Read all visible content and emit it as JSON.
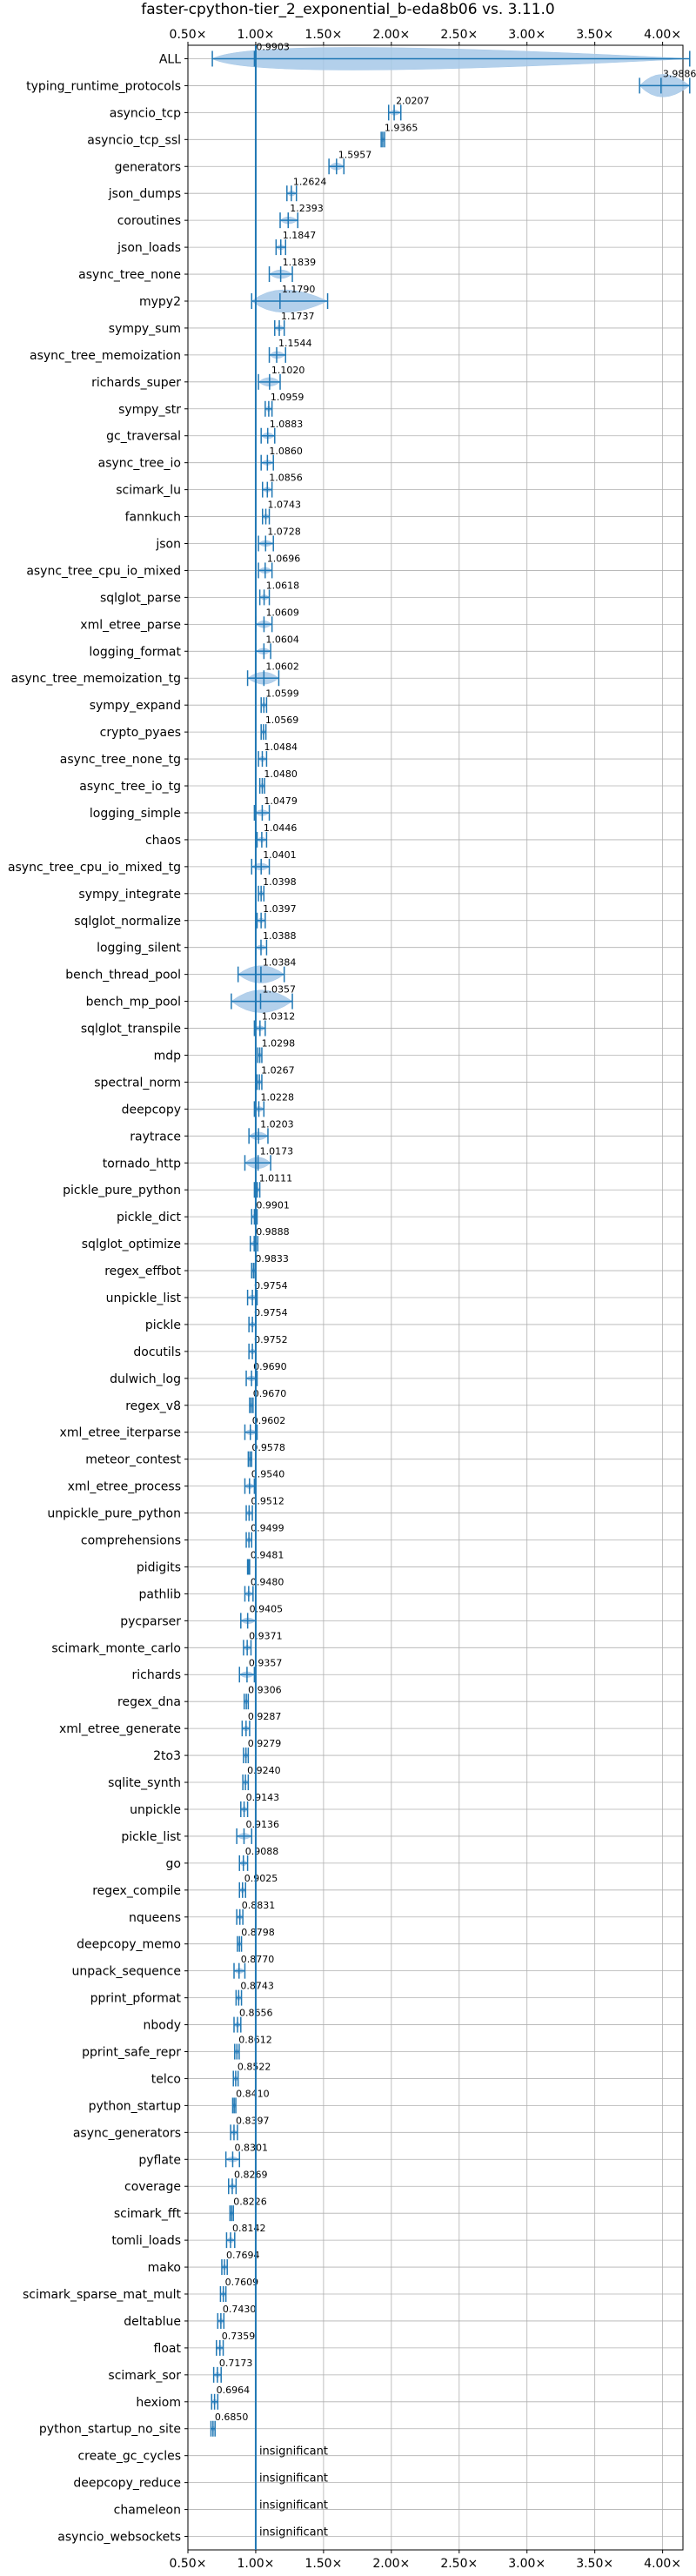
{
  "chart_data": {
    "type": "violin",
    "title": "faster-cpython-tier_2_exponential_b-eda8b06 vs. 3.11.0",
    "xlabel": "",
    "ylabel": "",
    "xlim": [
      0.5,
      4.15
    ],
    "x_ticks": [
      0.5,
      1.0,
      1.5,
      2.0,
      2.5,
      3.0,
      3.5,
      4.0
    ],
    "x_tick_labels": [
      "0.50×",
      "1.00×",
      "1.50×",
      "2.00×",
      "2.50×",
      "3.00×",
      "3.50×",
      "4.00×"
    ],
    "reference_line": 1.0,
    "grid": true,
    "benchmarks": [
      {
        "name": "ALL",
        "value": 0.9903,
        "label": "0.9903",
        "lo": 0.68,
        "hi": 4.2,
        "spread": 0.15
      },
      {
        "name": "typing_runtime_protocols",
        "value": 3.9886,
        "label": "3.9886",
        "lo": 3.83,
        "hi": 4.2,
        "spread": 0.13
      },
      {
        "name": "asyncio_tcp",
        "value": 2.0207,
        "label": "2.0207",
        "lo": 1.98,
        "hi": 2.07,
        "spread": 0.03
      },
      {
        "name": "asyncio_tcp_ssl",
        "value": 1.9365,
        "label": "1.9365",
        "lo": 1.925,
        "hi": 1.95,
        "spread": 0.008
      },
      {
        "name": "generators",
        "value": 1.5957,
        "label": "1.5957",
        "lo": 1.54,
        "hi": 1.65,
        "spread": 0.04
      },
      {
        "name": "json_dumps",
        "value": 1.2624,
        "label": "1.2624",
        "lo": 1.23,
        "hi": 1.3,
        "spread": 0.025
      },
      {
        "name": "coroutines",
        "value": 1.2393,
        "label": "1.2393",
        "lo": 1.18,
        "hi": 1.31,
        "spread": 0.04
      },
      {
        "name": "json_loads",
        "value": 1.1847,
        "label": "1.1847",
        "lo": 1.15,
        "hi": 1.22,
        "spread": 0.025
      },
      {
        "name": "async_tree_none",
        "value": 1.1839,
        "label": "1.1839",
        "lo": 1.1,
        "hi": 1.27,
        "spread": 0.05
      },
      {
        "name": "mypy2",
        "value": 1.179,
        "label": "1.1790",
        "lo": 0.97,
        "hi": 1.53,
        "spread": 0.14
      },
      {
        "name": "sympy_sum",
        "value": 1.1737,
        "label": "1.1737",
        "lo": 1.14,
        "hi": 1.21,
        "spread": 0.025
      },
      {
        "name": "async_tree_memoization",
        "value": 1.1544,
        "label": "1.1544",
        "lo": 1.1,
        "hi": 1.22,
        "spread": 0.04
      },
      {
        "name": "richards_super",
        "value": 1.102,
        "label": "1.1020",
        "lo": 1.02,
        "hi": 1.18,
        "spread": 0.05
      },
      {
        "name": "sympy_str",
        "value": 1.0959,
        "label": "1.0959",
        "lo": 1.07,
        "hi": 1.12,
        "spread": 0.02
      },
      {
        "name": "gc_traversal",
        "value": 1.0883,
        "label": "1.0883",
        "lo": 1.04,
        "hi": 1.14,
        "spread": 0.035
      },
      {
        "name": "async_tree_io",
        "value": 1.086,
        "label": "1.0860",
        "lo": 1.04,
        "hi": 1.13,
        "spread": 0.03
      },
      {
        "name": "scimark_lu",
        "value": 1.0856,
        "label": "1.0856",
        "lo": 1.05,
        "hi": 1.12,
        "spread": 0.025
      },
      {
        "name": "fannkuch",
        "value": 1.0743,
        "label": "1.0743",
        "lo": 1.05,
        "hi": 1.1,
        "spread": 0.02
      },
      {
        "name": "json",
        "value": 1.0728,
        "label": "1.0728",
        "lo": 1.02,
        "hi": 1.13,
        "spread": 0.035
      },
      {
        "name": "async_tree_cpu_io_mixed",
        "value": 1.0696,
        "label": "1.0696",
        "lo": 1.02,
        "hi": 1.12,
        "spread": 0.035
      },
      {
        "name": "sqlglot_parse",
        "value": 1.0618,
        "label": "1.0618",
        "lo": 1.03,
        "hi": 1.1,
        "spread": 0.025
      },
      {
        "name": "xml_etree_parse",
        "value": 1.0609,
        "label": "1.0609",
        "lo": 1.0,
        "hi": 1.12,
        "spread": 0.04
      },
      {
        "name": "logging_format",
        "value": 1.0604,
        "label": "1.0604",
        "lo": 1.0,
        "hi": 1.11,
        "spread": 0.035
      },
      {
        "name": "async_tree_memoization_tg",
        "value": 1.0602,
        "label": "1.0602",
        "lo": 0.94,
        "hi": 1.17,
        "spread": 0.07
      },
      {
        "name": "sympy_expand",
        "value": 1.0599,
        "label": "1.0599",
        "lo": 1.04,
        "hi": 1.08,
        "spread": 0.015
      },
      {
        "name": "crypto_pyaes",
        "value": 1.0569,
        "label": "1.0569",
        "lo": 1.04,
        "hi": 1.075,
        "spread": 0.012
      },
      {
        "name": "async_tree_none_tg",
        "value": 1.0484,
        "label": "1.0484",
        "lo": 1.02,
        "hi": 1.08,
        "spread": 0.02
      },
      {
        "name": "async_tree_io_tg",
        "value": 1.048,
        "label": "1.0480",
        "lo": 1.03,
        "hi": 1.065,
        "spread": 0.012
      },
      {
        "name": "logging_simple",
        "value": 1.0479,
        "label": "1.0479",
        "lo": 0.99,
        "hi": 1.1,
        "spread": 0.035
      },
      {
        "name": "chaos",
        "value": 1.0446,
        "label": "1.0446",
        "lo": 1.01,
        "hi": 1.08,
        "spread": 0.025
      },
      {
        "name": "async_tree_cpu_io_mixed_tg",
        "value": 1.0401,
        "label": "1.0401",
        "lo": 0.97,
        "hi": 1.1,
        "spread": 0.04
      },
      {
        "name": "sympy_integrate",
        "value": 1.0398,
        "label": "1.0398",
        "lo": 1.02,
        "hi": 1.06,
        "spread": 0.015
      },
      {
        "name": "sqlglot_normalize",
        "value": 1.0397,
        "label": "1.0397",
        "lo": 1.01,
        "hi": 1.07,
        "spread": 0.02
      },
      {
        "name": "logging_silent",
        "value": 1.0388,
        "label": "1.0388",
        "lo": 1.0,
        "hi": 1.08,
        "spread": 0.025
      },
      {
        "name": "bench_thread_pool",
        "value": 1.0384,
        "label": "1.0384",
        "lo": 0.87,
        "hi": 1.21,
        "spread": 0.1
      },
      {
        "name": "bench_mp_pool",
        "value": 1.0357,
        "label": "1.0357",
        "lo": 0.82,
        "hi": 1.27,
        "spread": 0.13
      },
      {
        "name": "sqlglot_transpile",
        "value": 1.0312,
        "label": "1.0312",
        "lo": 0.99,
        "hi": 1.07,
        "spread": 0.03
      },
      {
        "name": "mdp",
        "value": 1.0298,
        "label": "1.0298",
        "lo": 1.015,
        "hi": 1.045,
        "spread": 0.01
      },
      {
        "name": "spectral_norm",
        "value": 1.0267,
        "label": "1.0267",
        "lo": 1.01,
        "hi": 1.045,
        "spread": 0.012
      },
      {
        "name": "deepcopy",
        "value": 1.0228,
        "label": "1.0228",
        "lo": 0.99,
        "hi": 1.06,
        "spread": 0.025
      },
      {
        "name": "raytrace",
        "value": 1.0203,
        "label": "1.0203",
        "lo": 0.95,
        "hi": 1.09,
        "spread": 0.045
      },
      {
        "name": "tornado_http",
        "value": 1.0173,
        "label": "1.0173",
        "lo": 0.92,
        "hi": 1.11,
        "spread": 0.065
      },
      {
        "name": "pickle_pure_python",
        "value": 1.0111,
        "label": "1.0111",
        "lo": 0.99,
        "hi": 1.03,
        "spread": 0.015
      },
      {
        "name": "pickle_dict",
        "value": 0.9901,
        "label": "0.9901",
        "lo": 0.97,
        "hi": 1.01,
        "spread": 0.015
      },
      {
        "name": "sqlglot_optimize",
        "value": 0.9888,
        "label": "0.9888",
        "lo": 0.96,
        "hi": 1.015,
        "spread": 0.02
      },
      {
        "name": "regex_effbot",
        "value": 0.9833,
        "label": "0.9833",
        "lo": 0.97,
        "hi": 0.995,
        "spread": 0.01
      },
      {
        "name": "unpickle_list",
        "value": 0.9754,
        "label": "0.9754",
        "lo": 0.94,
        "hi": 1.01,
        "spread": 0.025
      },
      {
        "name": "pickle",
        "value": 0.9754,
        "label": "0.9754",
        "lo": 0.95,
        "hi": 1.0,
        "spread": 0.02
      },
      {
        "name": "docutils",
        "value": 0.9752,
        "label": "0.9752",
        "lo": 0.95,
        "hi": 1.0,
        "spread": 0.02
      },
      {
        "name": "dulwich_log",
        "value": 0.969,
        "label": "0.9690",
        "lo": 0.93,
        "hi": 1.01,
        "spread": 0.03
      },
      {
        "name": "regex_v8",
        "value": 0.967,
        "label": "0.9670",
        "lo": 0.955,
        "hi": 0.98,
        "spread": 0.01
      },
      {
        "name": "xml_etree_iterparse",
        "value": 0.9602,
        "label": "0.9602",
        "lo": 0.92,
        "hi": 1.01,
        "spread": 0.03
      },
      {
        "name": "meteor_contest",
        "value": 0.9578,
        "label": "0.9578",
        "lo": 0.945,
        "hi": 0.97,
        "spread": 0.01
      },
      {
        "name": "xml_etree_process",
        "value": 0.954,
        "label": "0.9540",
        "lo": 0.92,
        "hi": 0.99,
        "spread": 0.025
      },
      {
        "name": "unpickle_pure_python",
        "value": 0.9512,
        "label": "0.9512",
        "lo": 0.93,
        "hi": 0.975,
        "spread": 0.015
      },
      {
        "name": "comprehensions",
        "value": 0.9499,
        "label": "0.9499",
        "lo": 0.93,
        "hi": 0.97,
        "spread": 0.015
      },
      {
        "name": "pidigits",
        "value": 0.9481,
        "label": "0.9481",
        "lo": 0.94,
        "hi": 0.955,
        "spread": 0.008
      },
      {
        "name": "pathlib",
        "value": 0.948,
        "label": "0.9480",
        "lo": 0.92,
        "hi": 0.98,
        "spread": 0.02
      },
      {
        "name": "pycparser",
        "value": 0.9405,
        "label": "0.9405",
        "lo": 0.89,
        "hi": 1.0,
        "spread": 0.035
      },
      {
        "name": "scimark_monte_carlo",
        "value": 0.9371,
        "label": "0.9371",
        "lo": 0.91,
        "hi": 0.965,
        "spread": 0.02
      },
      {
        "name": "richards",
        "value": 0.9357,
        "label": "0.9357",
        "lo": 0.88,
        "hi": 0.99,
        "spread": 0.035
      },
      {
        "name": "regex_dna",
        "value": 0.9306,
        "label": "0.9306",
        "lo": 0.915,
        "hi": 0.945,
        "spread": 0.01
      },
      {
        "name": "xml_etree_generate",
        "value": 0.9287,
        "label": "0.9287",
        "lo": 0.9,
        "hi": 0.955,
        "spread": 0.02
      },
      {
        "name": "2to3",
        "value": 0.9279,
        "label": "0.9279",
        "lo": 0.91,
        "hi": 0.945,
        "spread": 0.012
      },
      {
        "name": "sqlite_synth",
        "value": 0.924,
        "label": "0.9240",
        "lo": 0.905,
        "hi": 0.945,
        "spread": 0.012
      },
      {
        "name": "unpickle",
        "value": 0.9143,
        "label": "0.9143",
        "lo": 0.89,
        "hi": 0.94,
        "spread": 0.015
      },
      {
        "name": "pickle_list",
        "value": 0.9136,
        "label": "0.9136",
        "lo": 0.86,
        "hi": 0.97,
        "spread": 0.035
      },
      {
        "name": "go",
        "value": 0.9088,
        "label": "0.9088",
        "lo": 0.88,
        "hi": 0.94,
        "spread": 0.02
      },
      {
        "name": "regex_compile",
        "value": 0.9025,
        "label": "0.9025",
        "lo": 0.88,
        "hi": 0.925,
        "spread": 0.015
      },
      {
        "name": "nqueens",
        "value": 0.8831,
        "label": "0.8831",
        "lo": 0.86,
        "hi": 0.905,
        "spread": 0.015
      },
      {
        "name": "deepcopy_memo",
        "value": 0.8798,
        "label": "0.8798",
        "lo": 0.865,
        "hi": 0.895,
        "spread": 0.01
      },
      {
        "name": "unpack_sequence",
        "value": 0.877,
        "label": "0.8770",
        "lo": 0.84,
        "hi": 0.92,
        "spread": 0.025
      },
      {
        "name": "pprint_pformat",
        "value": 0.8743,
        "label": "0.8743",
        "lo": 0.855,
        "hi": 0.895,
        "spread": 0.012
      },
      {
        "name": "nbody",
        "value": 0.8656,
        "label": "0.8656",
        "lo": 0.84,
        "hi": 0.89,
        "spread": 0.015
      },
      {
        "name": "pprint_safe_repr",
        "value": 0.8612,
        "label": "0.8612",
        "lo": 0.845,
        "hi": 0.878,
        "spread": 0.01
      },
      {
        "name": "telco",
        "value": 0.8522,
        "label": "0.8522",
        "lo": 0.835,
        "hi": 0.87,
        "spread": 0.01
      },
      {
        "name": "python_startup",
        "value": 0.841,
        "label": "0.8410",
        "lo": 0.83,
        "hi": 0.853,
        "spread": 0.008
      },
      {
        "name": "async_generators",
        "value": 0.8397,
        "label": "0.8397",
        "lo": 0.815,
        "hi": 0.865,
        "spread": 0.015
      },
      {
        "name": "pyflate",
        "value": 0.8301,
        "label": "0.8301",
        "lo": 0.78,
        "hi": 0.88,
        "spread": 0.03
      },
      {
        "name": "coverage",
        "value": 0.8269,
        "label": "0.8269",
        "lo": 0.8,
        "hi": 0.855,
        "spread": 0.015
      },
      {
        "name": "scimark_fft",
        "value": 0.8226,
        "label": "0.8226",
        "lo": 0.81,
        "hi": 0.835,
        "spread": 0.008
      },
      {
        "name": "tomli_loads",
        "value": 0.8142,
        "label": "0.8142",
        "lo": 0.785,
        "hi": 0.845,
        "spread": 0.018
      },
      {
        "name": "mako",
        "value": 0.7694,
        "label": "0.7694",
        "lo": 0.75,
        "hi": 0.79,
        "spread": 0.012
      },
      {
        "name": "scimark_sparse_mat_mult",
        "value": 0.7609,
        "label": "0.7609",
        "lo": 0.74,
        "hi": 0.78,
        "spread": 0.012
      },
      {
        "name": "deltablue",
        "value": 0.743,
        "label": "0.7430",
        "lo": 0.72,
        "hi": 0.765,
        "spread": 0.015
      },
      {
        "name": "float",
        "value": 0.7359,
        "label": "0.7359",
        "lo": 0.71,
        "hi": 0.76,
        "spread": 0.015
      },
      {
        "name": "scimark_sor",
        "value": 0.7173,
        "label": "0.7173",
        "lo": 0.69,
        "hi": 0.745,
        "spread": 0.015
      },
      {
        "name": "hexiom",
        "value": 0.6964,
        "label": "0.6964",
        "lo": 0.675,
        "hi": 0.72,
        "spread": 0.012
      },
      {
        "name": "python_startup_no_site",
        "value": 0.685,
        "label": "0.6850",
        "lo": 0.67,
        "hi": 0.7,
        "spread": 0.01
      },
      {
        "name": "create_gc_cycles",
        "value": null,
        "label": "insignificant"
      },
      {
        "name": "deepcopy_reduce",
        "value": null,
        "label": "insignificant"
      },
      {
        "name": "chameleon",
        "value": null,
        "label": "insignificant"
      },
      {
        "name": "asyncio_websockets",
        "value": null,
        "label": "insignificant"
      }
    ]
  },
  "colors": {
    "accent": "#1f77b4",
    "violin_fill": "#a6c8e8",
    "grid": "#b0b0b0",
    "text": "#000000"
  }
}
